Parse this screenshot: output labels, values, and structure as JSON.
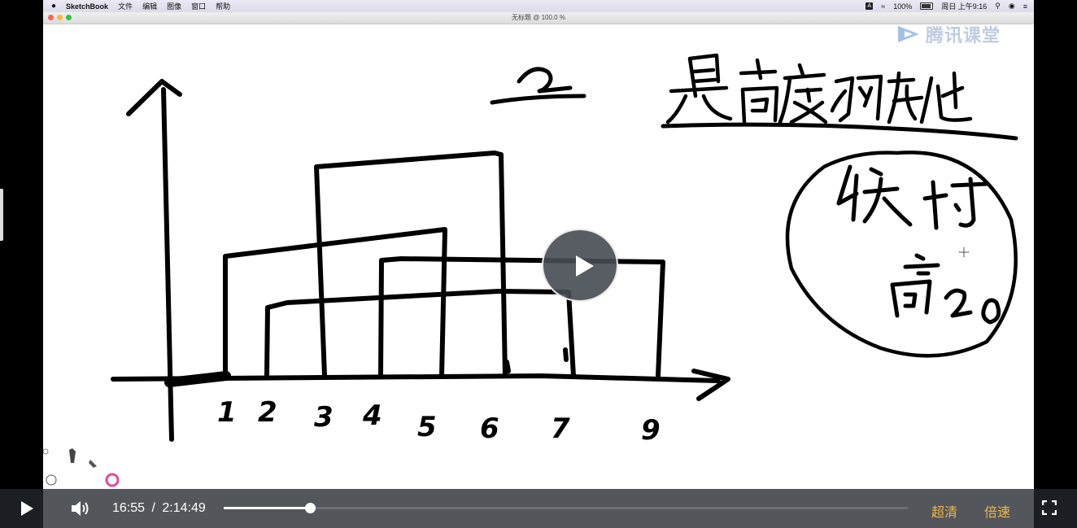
{
  "menubar": {
    "app_name": "SketchBook",
    "menus": [
      "文件",
      "编辑",
      "图像",
      "窗口",
      "帮助"
    ],
    "input_badge": "A",
    "battery": "100%",
    "clock": "周日 上午9:16"
  },
  "window": {
    "title": "无标题 @ 100.0 %"
  },
  "watermark": {
    "text": "腾讯课堂"
  },
  "whiteboard": {
    "axis_labels": [
      "1",
      "2",
      "3",
      "4",
      "5",
      "6",
      "7",
      "9"
    ]
  },
  "player": {
    "current_time": "16:55",
    "separator": "/",
    "duration": "2:14:49",
    "progress_fraction": 0.126,
    "quality_label": "超清",
    "speed_label": "倍速"
  },
  "colors": {
    "accent": "#f0b64a",
    "traffic_red": "#fc5f57",
    "traffic_yellow": "#fdbc2e",
    "traffic_green": "#27c840"
  },
  "icons": {
    "play": "play-icon",
    "volume": "volume-icon",
    "fullscreen": "fullscreen-icon"
  }
}
